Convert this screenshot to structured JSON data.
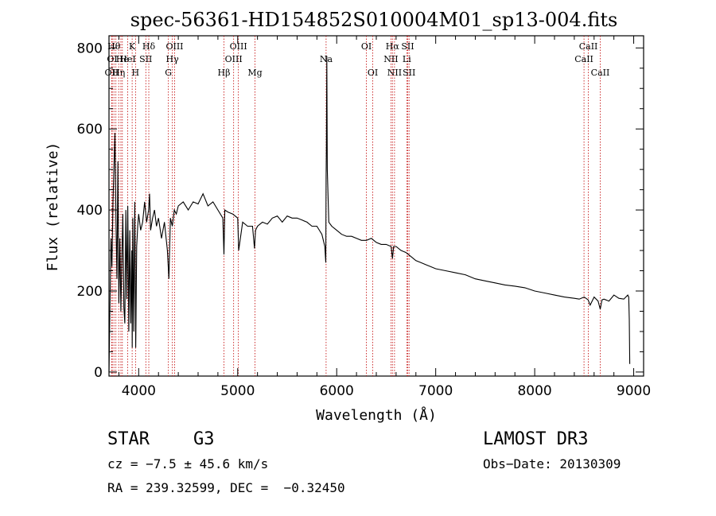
{
  "chart_data": {
    "type": "line",
    "title": "spec-56361-HD154852S010004M01_sp13-004.fits",
    "xlabel": "Wavelength (Å)",
    "ylabel": "Flux (relative)",
    "xlim": [
      3700,
      9100
    ],
    "ylim": [
      -10,
      830
    ],
    "x_ticks": [
      4000,
      5000,
      6000,
      7000,
      8000,
      9000
    ],
    "y_ticks": [
      0,
      200,
      400,
      600,
      800
    ],
    "series": [
      {
        "name": "flux",
        "x": [
          3700,
          3710,
          3720,
          3730,
          3740,
          3750,
          3760,
          3770,
          3780,
          3790,
          3800,
          3810,
          3820,
          3830,
          3840,
          3850,
          3860,
          3870,
          3880,
          3890,
          3900,
          3910,
          3920,
          3930,
          3935,
          3940,
          3950,
          3960,
          3965,
          3970,
          3980,
          3990,
          4000,
          4020,
          4040,
          4060,
          4080,
          4100,
          4110,
          4120,
          4140,
          4160,
          4180,
          4200,
          4230,
          4260,
          4290,
          4305,
          4320,
          4340,
          4360,
          4380,
          4400,
          4450,
          4500,
          4550,
          4600,
          4650,
          4700,
          4750,
          4800,
          4850,
          4861,
          4870,
          4900,
          4950,
          5000,
          5010,
          5050,
          5100,
          5150,
          5170,
          5180,
          5200,
          5250,
          5300,
          5350,
          5400,
          5450,
          5500,
          5550,
          5600,
          5650,
          5700,
          5750,
          5800,
          5850,
          5880,
          5890,
          5893,
          5896,
          5900,
          5905,
          5920,
          5950,
          6000,
          6050,
          6100,
          6150,
          6200,
          6250,
          6300,
          6350,
          6400,
          6450,
          6500,
          6550,
          6563,
          6575,
          6600,
          6650,
          6700,
          6750,
          6800,
          6850,
          6900,
          6950,
          7000,
          7100,
          7200,
          7300,
          7400,
          7500,
          7600,
          7700,
          7800,
          7900,
          8000,
          8100,
          8200,
          8300,
          8400,
          8450,
          8500,
          8540,
          8560,
          8600,
          8640,
          8662,
          8680,
          8700,
          8750,
          8800,
          8850,
          8900,
          8940,
          8950,
          8955,
          8960
        ],
        "values": [
          0,
          160,
          330,
          260,
          420,
          500,
          590,
          380,
          230,
          520,
          170,
          330,
          150,
          280,
          390,
          160,
          120,
          400,
          180,
          410,
          100,
          350,
          120,
          300,
          60,
          380,
          100,
          420,
          250,
          60,
          310,
          360,
          390,
          350,
          370,
          420,
          370,
          400,
          440,
          350,
          380,
          400,
          360,
          380,
          330,
          370,
          300,
          230,
          380,
          360,
          400,
          390,
          410,
          420,
          400,
          420,
          415,
          440,
          410,
          420,
          400,
          380,
          290,
          400,
          395,
          390,
          380,
          300,
          370,
          360,
          360,
          305,
          350,
          360,
          370,
          365,
          380,
          385,
          370,
          385,
          380,
          380,
          375,
          370,
          360,
          360,
          340,
          310,
          270,
          480,
          560,
          780,
          500,
          370,
          360,
          350,
          340,
          335,
          335,
          330,
          325,
          325,
          330,
          320,
          315,
          315,
          310,
          280,
          310,
          310,
          300,
          295,
          285,
          275,
          270,
          265,
          260,
          255,
          250,
          245,
          240,
          230,
          225,
          220,
          215,
          212,
          208,
          200,
          195,
          190,
          185,
          182,
          180,
          185,
          178,
          165,
          185,
          175,
          155,
          178,
          180,
          175,
          190,
          182,
          180,
          190,
          185,
          130,
          20
        ]
      }
    ],
    "lines": [
      {
        "x": 3727,
        "label": "OII",
        "row": 3
      },
      {
        "x": 3733,
        "label": "OI",
        "row": 2
      },
      {
        "x": 3750,
        "label": "Hθ",
        "row": 1
      },
      {
        "x": 3770,
        "label": "",
        "row": 0
      },
      {
        "x": 3798,
        "label": "Hη",
        "row": 3
      },
      {
        "x": 3820,
        "label": "",
        "row": 0
      },
      {
        "x": 3835,
        "label": "He",
        "row": 2
      },
      {
        "x": 3889,
        "label": "HeI",
        "row": 2
      },
      {
        "x": 3934,
        "label": "K",
        "row": 1
      },
      {
        "x": 3968,
        "label": "H",
        "row": 3
      },
      {
        "x": 4072,
        "label": "SII",
        "row": 2
      },
      {
        "x": 4102,
        "label": "Hδ",
        "row": 1
      },
      {
        "x": 4300,
        "label": "G",
        "row": 3
      },
      {
        "x": 4340,
        "label": "Hγ",
        "row": 2
      },
      {
        "x": 4363,
        "label": "OIII",
        "row": 1
      },
      {
        "x": 4861,
        "label": "Hβ",
        "row": 3
      },
      {
        "x": 4959,
        "label": "OIII",
        "row": 2
      },
      {
        "x": 5007,
        "label": "OIII",
        "row": 1
      },
      {
        "x": 5175,
        "label": "Mg",
        "row": 3
      },
      {
        "x": 5893,
        "label": "Na",
        "row": 2
      },
      {
        "x": 6300,
        "label": "OI",
        "row": 1
      },
      {
        "x": 6364,
        "label": "OI",
        "row": 3
      },
      {
        "x": 6548,
        "label": "NII",
        "row": 2
      },
      {
        "x": 6563,
        "label": "Hα",
        "row": 1
      },
      {
        "x": 6584,
        "label": "NII",
        "row": 3
      },
      {
        "x": 6708,
        "label": "Li",
        "row": 2
      },
      {
        "x": 6717,
        "label": "SII",
        "row": 1
      },
      {
        "x": 6731,
        "label": "SII",
        "row": 3
      },
      {
        "x": 8498,
        "label": "CaII",
        "row": 2
      },
      {
        "x": 8542,
        "label": "CaII",
        "row": 1
      },
      {
        "x": 8662,
        "label": "CaII",
        "row": 3
      }
    ],
    "line_color": "#c00000",
    "spectrum_color": "#000000"
  },
  "info": {
    "class_label": "STAR",
    "subclass": "G3",
    "survey": "LAMOST DR3",
    "cz": "cz = −7.5 ± 45.6 km/s",
    "obs_date": "Obs−Date: 20130309",
    "coords": "RA = 239.32599, DEC =  −0.32450"
  }
}
